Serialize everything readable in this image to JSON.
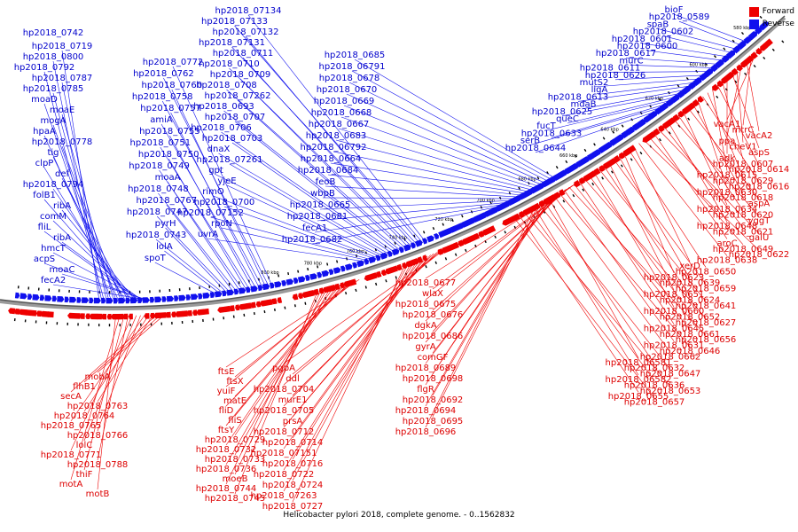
{
  "caption": "Helicobacter pylori 2018, complete genome. - 0..1562832",
  "legend": {
    "forward": {
      "label": "Forward",
      "color": "#ee0000"
    },
    "reverse": {
      "label": "Reverse",
      "color": "#1010ee"
    }
  },
  "tick_labels": [
    "580 kbp",
    "600 kbp",
    "620 kbp",
    "640 kbp",
    "660 kbp",
    "680 kbp",
    "700 kbp",
    "720 kbp",
    "740 kbp",
    "760 kbp",
    "780 kbp",
    "800 kbp"
  ],
  "reverse_genes": [
    "bioF",
    "hp2018_0589",
    "spaB",
    "hp2018_0602",
    "hp2018_0601",
    "hp2018_0600",
    "hp2018_0617",
    "murC",
    "hp2018_0611",
    "hp2018_0626",
    "mutS2",
    "ligA",
    "hp2018_0613",
    "mdaB",
    "hp2018_0625",
    "queC",
    "fucT",
    "hp2018_0633",
    "serB",
    "hp2018_0644",
    "hp2018_0685",
    "hp2018_06791",
    "hp2018_0678",
    "hp2018_0670",
    "hp2018_0669",
    "hp2018_0668",
    "hp2018_0667",
    "hp2018_0683",
    "hp2018_06792",
    "hp2018_0664",
    "hp2018_0684",
    "feoB",
    "wbpB",
    "hp2018_0665",
    "hp2018_0681",
    "fecA1",
    "hp2018_0682",
    "hp2018_07134",
    "hp2018_07133",
    "hp2018_07132",
    "hp2018_07131",
    "hp2018_0711",
    "hp2018_0710",
    "hp2018_0709",
    "hp2018_0708",
    "hp2018_07262",
    "hp2018_0693",
    "hp2018_0707",
    "hp2018_0706",
    "hp2018_0703",
    "dnaX",
    "hp2018_07261",
    "gpt",
    "yjeE",
    "rimO",
    "hp2018_0700",
    "hp2018_07152",
    "rpoN",
    "uvrA",
    "hp2018_0719",
    "hp2018_0800",
    "hp2018_0792",
    "hp2018_0787",
    "hp2018_0785",
    "moaD",
    "moaE",
    "mogA",
    "hpaA",
    "hp2018_0778",
    "tig",
    "clpP",
    "def",
    "hp2018_0794",
    "folB1",
    "ribA",
    "comM",
    "fliL",
    "ribA",
    "hmcT",
    "acpS",
    "moaC",
    "fecA2",
    "hp2018_0772",
    "hp2018_0762",
    "hp2018_0760",
    "hp2018_0758",
    "hp2018_0757",
    "amiA",
    "hp2018_0755",
    "hp2018_0751",
    "hp2018_0750",
    "hp2018_0749",
    "moaA",
    "hp2018_0748",
    "hp2018_0767",
    "hp2018_0747",
    "pyrH",
    "hp2018_0743",
    "lolA",
    "spoT",
    "hp2018_0742"
  ],
  "forward_genes": [
    "vacA1",
    "mtrC",
    "vacA2",
    "ppa",
    "cheV1",
    "aspS",
    "adk",
    "hp2018_0607",
    "hp2018_0614",
    "hp2018_0615",
    "hp2018_0629",
    "hp2018_0616",
    "hp2018_0630",
    "hp2018_0618",
    "aspA",
    "hp2018_0634",
    "hp2018_0620",
    "yggT",
    "hp2018_0648",
    "hp2018_0621",
    "galU",
    "aroC",
    "hp2018_0649",
    "hp2018_0622",
    "hp2018_0638",
    "xerD",
    "hp2018_0650",
    "hp2018_0623",
    "hp2018_0639",
    "hp2018_0659",
    "hp2018_0651",
    "hp2018_0624",
    "hp2018_0641",
    "hp2018_0660",
    "hp2018_0652",
    "hp2018_0627",
    "hp2018_0645",
    "hp2018_0661",
    "hp2018_0656",
    "hp2018_0631",
    "hp2018_0646",
    "hp2018_0662",
    "hp2018_06581",
    "hp2018_0632",
    "hp2018_0647",
    "hp2018_06582",
    "hp2018_0636",
    "hp2018_0653",
    "hp2018_0655",
    "hp2018_0657",
    "hp2018_0677",
    "wlaX",
    "hp2018_0675",
    "hp2018_0676",
    "dgkA",
    "hp2018_0686",
    "gyrA",
    "comGF",
    "hp2018_0689",
    "hp2018_0698",
    "flgR",
    "hp2018_0692",
    "hp2018_0694",
    "hp2018_0695",
    "hp2018_0696",
    "pgpA",
    "ddl",
    "hp2018_0704",
    "murE1",
    "hp2018_0705",
    "prsA",
    "hp2018_0712",
    "hp2018_0714",
    "hp2018_07151",
    "hp2018_0716",
    "hp2018_0722",
    "hp2018_0724",
    "hp2018_07263",
    "hp2018_0727",
    "ftsE",
    "ftsX",
    "yuiF",
    "matE",
    "fliD",
    "fliS",
    "ftsY",
    "hp2018_0729",
    "hp2018_0732",
    "hp2018_0733",
    "hp2018_0736",
    "moeB",
    "hp2018_0744",
    "hp2018_0745",
    "mobA",
    "flhB1",
    "secA",
    "hp2018_0763",
    "hp2018_0764",
    "hp2018_0765",
    "hp2018_0766",
    "lolC",
    "hp2018_0771",
    "hp2018_0788",
    "thiF",
    "motA",
    "motB"
  ]
}
